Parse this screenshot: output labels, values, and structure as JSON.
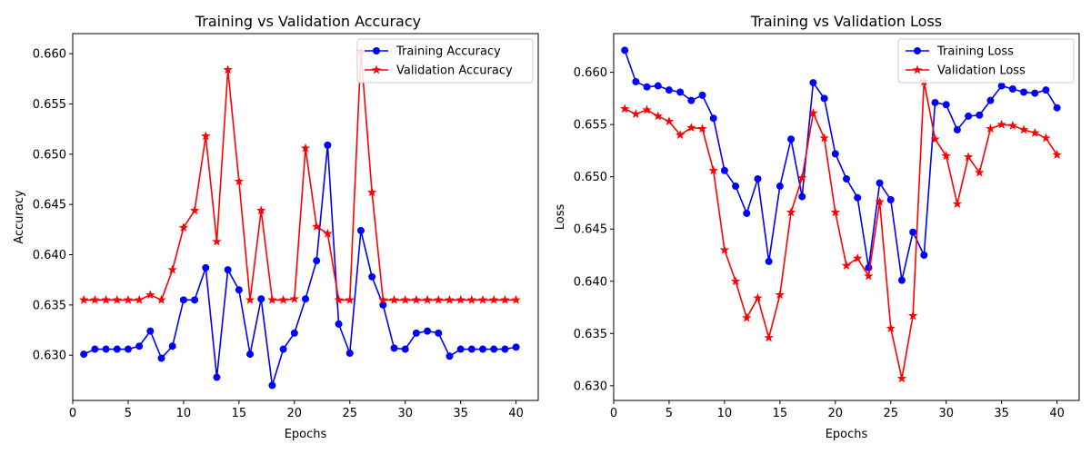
{
  "chart_data": [
    {
      "type": "line",
      "title": "Training vs Validation Accuracy",
      "xlabel": "Epochs",
      "ylabel": "Accuracy",
      "xlim": [
        0,
        42
      ],
      "ylim": [
        0.6255,
        0.662
      ],
      "xticks": [
        0,
        5,
        10,
        15,
        20,
        25,
        30,
        35,
        40
      ],
      "yticks": [
        0.63,
        0.635,
        0.64,
        0.645,
        0.65,
        0.655,
        0.66
      ],
      "xtick_labels": [
        "0",
        "5",
        "10",
        "15",
        "20",
        "25",
        "30",
        "35",
        "40"
      ],
      "ytick_labels": [
        "0.630",
        "0.635",
        "0.640",
        "0.645",
        "0.650",
        "0.655",
        "0.660"
      ],
      "legend_position": "top-right",
      "grid": false,
      "x": [
        1,
        2,
        3,
        4,
        5,
        6,
        7,
        8,
        9,
        10,
        11,
        12,
        13,
        14,
        15,
        16,
        17,
        18,
        19,
        20,
        21,
        22,
        23,
        24,
        25,
        26,
        27,
        28,
        29,
        30,
        31,
        32,
        33,
        34,
        35,
        36,
        37,
        38,
        39,
        40
      ],
      "series": [
        {
          "name": "Training Accuracy",
          "color": "#0000ff",
          "marker": "circle",
          "values": [
            0.6301,
            0.6306,
            0.6306,
            0.6306,
            0.6306,
            0.6309,
            0.6324,
            0.6297,
            0.6309,
            0.6355,
            0.6355,
            0.6387,
            0.6278,
            0.6385,
            0.6365,
            0.6301,
            0.6356,
            0.627,
            0.6306,
            0.6322,
            0.6356,
            0.6394,
            0.6509,
            0.6331,
            0.6302,
            0.6424,
            0.6378,
            0.635,
            0.6307,
            0.6306,
            0.6322,
            0.6324,
            0.6322,
            0.6299,
            0.6306,
            0.6306,
            0.6306,
            0.6306,
            0.6306,
            0.6308
          ]
        },
        {
          "name": "Validation Accuracy",
          "color": "#ff0000",
          "marker": "star",
          "values": [
            0.6355,
            0.6355,
            0.6355,
            0.6355,
            0.6355,
            0.6355,
            0.636,
            0.6355,
            0.6385,
            0.6427,
            0.6444,
            0.6518,
            0.6413,
            0.6584,
            0.6473,
            0.6355,
            0.6444,
            0.6355,
            0.6355,
            0.6356,
            0.6506,
            0.6428,
            0.6421,
            0.6355,
            0.6355,
            0.6602,
            0.6462,
            0.6355,
            0.6355,
            0.6355,
            0.6355,
            0.6355,
            0.6355,
            0.6355,
            0.6355,
            0.6355,
            0.6355,
            0.6355,
            0.6355,
            0.6355
          ]
        }
      ]
    },
    {
      "type": "line",
      "title": "Training vs Validation Loss",
      "xlabel": "Epochs",
      "ylabel": "Loss",
      "xlim": [
        0,
        42
      ],
      "ylim": [
        0.6286,
        0.6637
      ],
      "xticks": [
        0,
        5,
        10,
        15,
        20,
        25,
        30,
        35,
        40
      ],
      "yticks": [
        0.63,
        0.635,
        0.64,
        0.645,
        0.65,
        0.655,
        0.66
      ],
      "xtick_labels": [
        "0",
        "5",
        "10",
        "15",
        "20",
        "25",
        "30",
        "35",
        "40"
      ],
      "ytick_labels": [
        "0.630",
        "0.635",
        "0.640",
        "0.645",
        "0.650",
        "0.655",
        "0.660"
      ],
      "legend_position": "top-right",
      "grid": false,
      "x": [
        1,
        2,
        3,
        4,
        5,
        6,
        7,
        8,
        9,
        10,
        11,
        12,
        13,
        14,
        15,
        16,
        17,
        18,
        19,
        20,
        21,
        22,
        23,
        24,
        25,
        26,
        27,
        28,
        29,
        30,
        31,
        32,
        33,
        34,
        35,
        36,
        37,
        38,
        39,
        40
      ],
      "series": [
        {
          "name": "Training Loss",
          "color": "#0000ff",
          "marker": "circle",
          "values": [
            0.6621,
            0.6591,
            0.6586,
            0.6587,
            0.6583,
            0.6581,
            0.6573,
            0.6578,
            0.6556,
            0.6506,
            0.6491,
            0.6465,
            0.6498,
            0.6419,
            0.6491,
            0.6536,
            0.6481,
            0.659,
            0.6575,
            0.6522,
            0.6498,
            0.648,
            0.6413,
            0.6494,
            0.6478,
            0.6401,
            0.6447,
            0.6425,
            0.6571,
            0.6569,
            0.6545,
            0.6558,
            0.6559,
            0.6573,
            0.6587,
            0.6584,
            0.6581,
            0.658,
            0.6583,
            0.6566
          ]
        },
        {
          "name": "Validation Loss",
          "color": "#ff0000",
          "marker": "star",
          "values": [
            0.6565,
            0.656,
            0.6564,
            0.6558,
            0.6553,
            0.654,
            0.6547,
            0.6546,
            0.6506,
            0.643,
            0.64,
            0.6365,
            0.6384,
            0.6346,
            0.6387,
            0.6466,
            0.6499,
            0.6561,
            0.6537,
            0.6466,
            0.6415,
            0.6422,
            0.6405,
            0.6476,
            0.6355,
            0.6307,
            0.6367,
            0.6591,
            0.6536,
            0.652,
            0.6474,
            0.6519,
            0.6504,
            0.6546,
            0.655,
            0.6549,
            0.6545,
            0.6542,
            0.6537,
            0.6521
          ]
        }
      ]
    }
  ]
}
